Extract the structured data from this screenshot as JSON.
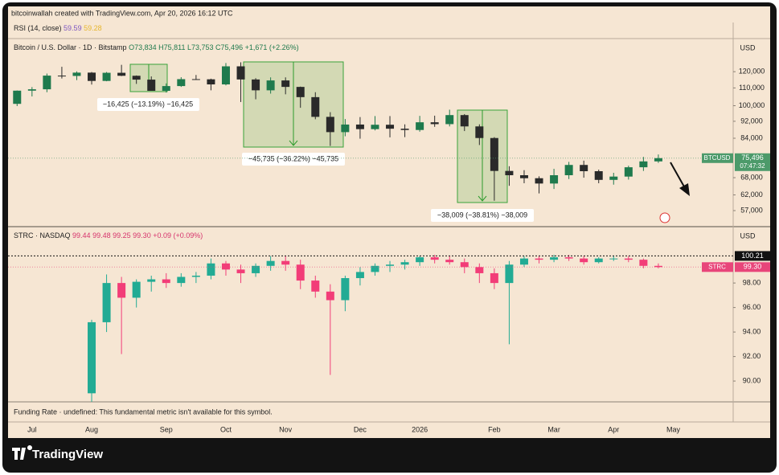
{
  "header": {
    "text": "bitcoinwallah created with TradingView.com, Apr 20, 2026 16:12 UTC"
  },
  "rsi": {
    "label": "RSI (14, close)",
    "values": [
      "59.59",
      "59.28"
    ]
  },
  "funding_rate": "Funding Rate · undefined: This fundamental metric isn't available for this symbol.",
  "footer": {
    "brand": "TradingView"
  },
  "chart_data": [
    {
      "type": "candlestick",
      "log_scale": true,
      "currency": "USD",
      "legend": [
        "Bitcoin / U.S. Dollar · 1D · Bitstamp",
        "O73,834",
        "H75,811",
        "L73,753",
        "C75,496",
        "+1,671 (+2.26%)"
      ],
      "up_color": "#1f7a4d",
      "down_color": "#2a2a2a",
      "categories": [
        null,
        "Jul",
        null,
        null,
        null,
        "Aug",
        null,
        null,
        null,
        null,
        "Sep",
        null,
        null,
        null,
        "Oct",
        null,
        null,
        null,
        "Nov",
        null,
        null,
        null,
        null,
        "Dec",
        null,
        null,
        null,
        "2026",
        null,
        null,
        null,
        null,
        "Feb",
        null,
        null,
        null,
        "Mar",
        null,
        null,
        null,
        "Apr",
        null,
        null,
        null,
        "May",
        null
      ],
      "open": [
        101000,
        108400,
        109200,
        117500,
        117300,
        119400,
        114200,
        119300,
        117400,
        115000,
        108300,
        111100,
        115300,
        115200,
        112100,
        123500,
        115100,
        108600,
        114500,
        110600,
        104700,
        94200,
        86800,
        90400,
        88200,
        90300,
        88400,
        87800,
        91500,
        90600,
        95100,
        89500,
        84100,
        70500,
        68900,
        67800,
        65900,
        68900,
        72800,
        70400,
        67200,
        68400,
        71900,
        74200,
        null,
        null
      ],
      "high": [
        108500,
        110500,
        118800,
        123200,
        120200,
        119800,
        119800,
        124500,
        117600,
        117000,
        112700,
        116500,
        117900,
        115600,
        125700,
        126200,
        115900,
        116400,
        116400,
        110800,
        107500,
        96600,
        93100,
        94100,
        94600,
        94600,
        90500,
        94700,
        94800,
        97900,
        95600,
        90500,
        84500,
        72300,
        70800,
        68500,
        71300,
        74000,
        74500,
        71000,
        69800,
        72500,
        76000,
        77000,
        null,
        null
      ],
      "low": [
        99800,
        105100,
        107500,
        115700,
        114700,
        112000,
        114000,
        117200,
        112400,
        108700,
        107300,
        110600,
        114800,
        108600,
        111500,
        102000,
        103500,
        106700,
        106300,
        98900,
        93000,
        80600,
        84900,
        83800,
        87600,
        84400,
        84500,
        87000,
        89300,
        89500,
        87300,
        81000,
        60100,
        65100,
        66000,
        62500,
        64000,
        67500,
        68000,
        66000,
        65500,
        67300,
        70500,
        73600,
        null,
        null
      ],
      "close": [
        108400,
        109200,
        117500,
        117300,
        119400,
        114200,
        119300,
        117400,
        115000,
        108300,
        111100,
        115300,
        115200,
        112100,
        123500,
        115100,
        108600,
        114500,
        110600,
        104700,
        94200,
        86800,
        90400,
        88200,
        90300,
        88400,
        87800,
        91500,
        90600,
        95100,
        89500,
        84100,
        70500,
        68900,
        67800,
        65900,
        68900,
        72800,
        70400,
        67200,
        68400,
        71900,
        74200,
        75496,
        null,
        null
      ],
      "ylim": [
        52300,
        143300
      ],
      "yticks": [
        {
          "value": 120000,
          "label": "120,000"
        },
        {
          "value": 110000,
          "label": "110,000"
        },
        {
          "value": 100000,
          "label": "100,000"
        },
        {
          "value": 92000,
          "label": "92,000"
        },
        {
          "value": 84000,
          "label": "84,000"
        },
        {
          "value": 68000,
          "label": "68,000"
        },
        {
          "value": 62000,
          "label": "62,000"
        },
        {
          "value": 57000,
          "label": "57,000"
        }
      ],
      "last_price": {
        "name": "BTCUSD",
        "value": 75496,
        "label": "75,496",
        "countdown": "07:47:32",
        "color": "#4c9a6a"
      },
      "annotations": [
        "−16,425 (−13.19%) −16,425",
        "−45,735 (−36.22%) −45,735",
        "−38,009 (−38.81%) −38,009"
      ]
    },
    {
      "type": "candlestick",
      "log_scale": false,
      "currency": "USD",
      "legend": [
        "STRC · NASDAQ",
        "99.44",
        "99.48",
        "99.25",
        "99.30",
        "+0.09 (+0.09%)"
      ],
      "up_color": "#22ab94",
      "down_color": "#f23d78",
      "categories": [
        null,
        "Jul",
        null,
        null,
        null,
        "Aug",
        null,
        null,
        null,
        null,
        "Sep",
        null,
        null,
        null,
        "Oct",
        null,
        null,
        null,
        "Nov",
        null,
        null,
        null,
        null,
        "Dec",
        null,
        null,
        null,
        "2026",
        null,
        null,
        null,
        null,
        "Feb",
        null,
        null,
        null,
        "Mar",
        null,
        null,
        null,
        "Apr",
        null,
        null,
        null,
        "May",
        null
      ],
      "open": [
        null,
        null,
        null,
        null,
        null,
        89.0,
        94.8,
        98.0,
        96.8,
        98.1,
        98.3,
        98.0,
        98.5,
        98.6,
        99.6,
        99.1,
        98.8,
        99.4,
        99.8,
        99.5,
        98.2,
        97.3,
        96.6,
        98.4,
        98.9,
        99.4,
        99.5,
        99.7,
        100.1,
        99.9,
        99.7,
        99.3,
        98.8,
        98.0,
        99.5,
        100.0,
        99.9,
        100.1,
        100.0,
        99.7,
        100.0,
        100.0,
        99.9,
        99.4,
        null,
        null
      ],
      "high": [
        null,
        null,
        null,
        null,
        null,
        95.0,
        98.7,
        98.5,
        98.3,
        98.6,
        98.8,
        98.8,
        98.9,
        100.0,
        99.8,
        99.5,
        99.6,
        100.2,
        100.2,
        99.9,
        98.6,
        97.9,
        98.6,
        99.3,
        99.6,
        99.8,
        99.9,
        100.2,
        100.3,
        100.2,
        100.0,
        99.6,
        99.2,
        99.8,
        100.2,
        100.2,
        100.3,
        100.3,
        100.2,
        100.1,
        100.2,
        100.2,
        100.0,
        99.6,
        null,
        null
      ],
      "low": [
        null,
        null,
        null,
        null,
        null,
        88.3,
        94.0,
        92.2,
        96.0,
        97.3,
        97.6,
        97.7,
        98.0,
        98.3,
        98.6,
        98.0,
        98.5,
        99.0,
        99.0,
        97.5,
        96.8,
        90.5,
        95.7,
        97.8,
        98.6,
        98.9,
        99.1,
        99.4,
        99.6,
        99.5,
        98.8,
        98.0,
        97.5,
        93.0,
        99.3,
        99.6,
        99.7,
        99.8,
        99.5,
        99.6,
        99.8,
        99.7,
        99.2,
        99.2,
        null,
        null
      ],
      "close": [
        null,
        null,
        null,
        null,
        null,
        94.8,
        98.0,
        96.8,
        98.1,
        98.3,
        98.0,
        98.5,
        98.6,
        99.6,
        99.1,
        98.8,
        99.4,
        99.8,
        99.5,
        98.2,
        97.3,
        96.6,
        98.4,
        98.9,
        99.4,
        99.5,
        99.7,
        100.1,
        99.9,
        99.7,
        99.3,
        98.8,
        98.0,
        99.5,
        100.0,
        99.9,
        100.1,
        100.0,
        99.7,
        100.0,
        100.0,
        99.9,
        99.4,
        99.3,
        null,
        null
      ],
      "ylim": [
        88.3,
        102.6
      ],
      "yticks": [
        {
          "value": 98,
          "label": "98.00"
        },
        {
          "value": 96,
          "label": "96.00"
        },
        {
          "value": 94,
          "label": "94.00"
        },
        {
          "value": 92,
          "label": "92.00"
        },
        {
          "value": 90,
          "label": "90.00"
        }
      ],
      "reference_line": {
        "value": 100.21,
        "label": "100.21"
      },
      "last_price": {
        "name": "STRC",
        "value": 99.3,
        "label": "99.30",
        "color": "#e8457a"
      }
    }
  ]
}
